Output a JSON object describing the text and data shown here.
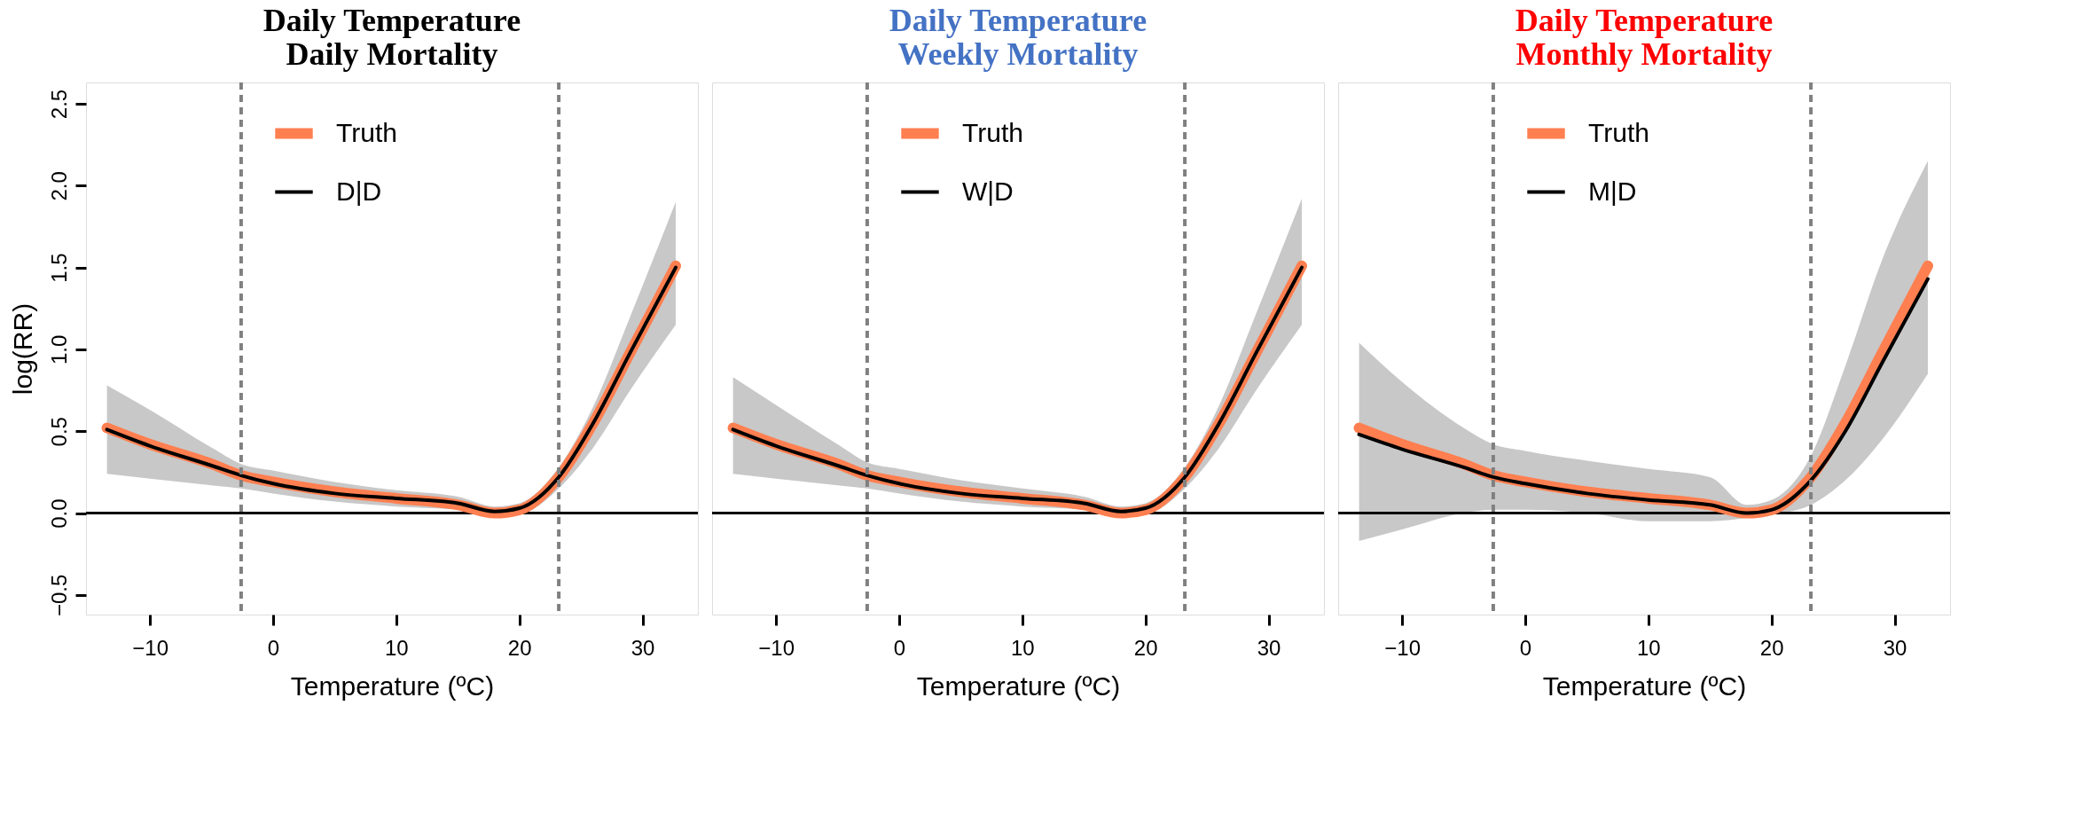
{
  "chart_data": [
    {
      "type": "line",
      "title": "Daily Temperature\nDaily Mortality",
      "xlabel": "Temperature (ºC)",
      "ylabel": "log(RR)",
      "xlim": [
        -15.2,
        34.5
      ],
      "ylim": [
        -0.62,
        2.63
      ],
      "xticks": [
        -10,
        0,
        10,
        20,
        30
      ],
      "yticks": [
        -0.5,
        {
          "value": 0,
          "label": "0.0"
        },
        0.5,
        {
          "value": 1,
          "label": "1.0"
        },
        1.5,
        {
          "value": 2,
          "label": "2.0"
        },
        2.5
      ],
      "legend": "top",
      "grid": false,
      "x": [
        -13.5,
        -10,
        -5,
        -2.6,
        0,
        5,
        10,
        15,
        18,
        20,
        23.2,
        26,
        29,
        32.7
      ],
      "series": [
        {
          "name": "Truth",
          "color": "#ff7f50",
          "values": [
            0.52,
            0.42,
            0.3,
            0.23,
            0.19,
            0.13,
            0.09,
            0.05,
            0.0,
            0.02,
            0.22,
            0.55,
            0.98,
            1.51
          ]
        },
        {
          "name": "D|D",
          "color": "#000000",
          "values": [
            0.51,
            0.41,
            0.29,
            0.23,
            0.18,
            0.12,
            0.09,
            0.06,
            0.01,
            0.03,
            0.22,
            0.55,
            0.98,
            1.5
          ],
          "lower": [
            0.24,
            0.21,
            0.17,
            0.15,
            0.12,
            0.07,
            0.04,
            0.02,
            -0.02,
            -0.01,
            0.15,
            0.4,
            0.75,
            1.15
          ],
          "upper": [
            0.78,
            0.63,
            0.4,
            0.3,
            0.26,
            0.19,
            0.14,
            0.1,
            0.04,
            0.06,
            0.28,
            0.65,
            1.2,
            1.9
          ]
        }
      ],
      "ref_lines": [
        {
          "axis": "y",
          "value": 0,
          "color": "#000000",
          "line_style": "solid"
        },
        {
          "axis": "x",
          "value": -2.6,
          "color": "#808080",
          "line_style": "dashed"
        },
        {
          "axis": "x",
          "value": 23.2,
          "color": "#808080",
          "line_style": "dashed"
        }
      ]
    },
    {
      "type": "line",
      "title": "Daily Temperature\nWeekly Mortality",
      "xlabel": "Temperature (ºC)",
      "xlim": [
        -15.2,
        34.5
      ],
      "ylim": [
        -0.62,
        2.63
      ],
      "xticks": [
        -10,
        0,
        10,
        20,
        30
      ],
      "tick_labels": "x",
      "legend": "top",
      "grid": false,
      "x": [
        -13.5,
        -10,
        -5,
        -2.6,
        0,
        5,
        10,
        15,
        18,
        20,
        23.2,
        26,
        29,
        32.7
      ],
      "series": [
        {
          "name": "Truth",
          "color": "#ff7f50",
          "values": [
            0.52,
            0.42,
            0.3,
            0.23,
            0.19,
            0.13,
            0.09,
            0.05,
            0.0,
            0.02,
            0.22,
            0.55,
            0.98,
            1.51
          ]
        },
        {
          "name": "W|D",
          "color": "#000000",
          "values": [
            0.51,
            0.41,
            0.29,
            0.23,
            0.18,
            0.12,
            0.09,
            0.06,
            0.01,
            0.03,
            0.22,
            0.55,
            0.98,
            1.5
          ],
          "lower": [
            0.24,
            0.21,
            0.17,
            0.15,
            0.12,
            0.07,
            0.04,
            0.02,
            -0.02,
            -0.01,
            0.15,
            0.4,
            0.75,
            1.15
          ],
          "upper": [
            0.83,
            0.66,
            0.42,
            0.31,
            0.27,
            0.2,
            0.15,
            0.1,
            0.04,
            0.06,
            0.28,
            0.66,
            1.22,
            1.92
          ]
        }
      ],
      "ref_lines": [
        {
          "axis": "y",
          "value": 0,
          "color": "#000000",
          "line_style": "solid"
        },
        {
          "axis": "x",
          "value": -2.6,
          "color": "#808080",
          "line_style": "dashed"
        },
        {
          "axis": "x",
          "value": 23.2,
          "color": "#808080",
          "line_style": "dashed"
        }
      ]
    },
    {
      "type": "line",
      "title": "Daily Temperature\nMonthly Mortality",
      "xlabel": "Temperature (ºC)",
      "xlim": [
        -15.2,
        34.5
      ],
      "ylim": [
        -0.62,
        2.63
      ],
      "xticks": [
        -10,
        0,
        10,
        20,
        30
      ],
      "tick_labels": "x",
      "legend": "top",
      "grid": false,
      "x": [
        -13.5,
        -10,
        -5,
        -2.6,
        0,
        5,
        10,
        15,
        18,
        20,
        23.2,
        26,
        29,
        32.7
      ],
      "series": [
        {
          "name": "Truth",
          "color": "#ff7f50",
          "values": [
            0.52,
            0.42,
            0.3,
            0.23,
            0.19,
            0.13,
            0.09,
            0.05,
            0.0,
            0.02,
            0.22,
            0.55,
            0.98,
            1.51
          ]
        },
        {
          "name": "M|D",
          "color": "#000000",
          "values": [
            0.48,
            0.39,
            0.28,
            0.22,
            0.18,
            0.12,
            0.08,
            0.05,
            0.0,
            0.02,
            0.2,
            0.5,
            0.92,
            1.43
          ],
          "lower": [
            -0.17,
            -0.1,
            0.0,
            0.02,
            0.02,
            0.0,
            -0.05,
            -0.05,
            -0.03,
            -0.01,
            0.05,
            0.2,
            0.45,
            0.85
          ],
          "upper": [
            1.04,
            0.8,
            0.52,
            0.42,
            0.38,
            0.32,
            0.27,
            0.22,
            0.05,
            0.08,
            0.35,
            0.9,
            1.55,
            2.15
          ]
        }
      ],
      "ref_lines": [
        {
          "axis": "y",
          "value": 0,
          "color": "#000000",
          "line_style": "solid"
        },
        {
          "axis": "x",
          "value": -2.6,
          "color": "#808080",
          "line_style": "dashed"
        },
        {
          "axis": "x",
          "value": 23.2,
          "color": "#808080",
          "line_style": "dashed"
        }
      ]
    }
  ]
}
